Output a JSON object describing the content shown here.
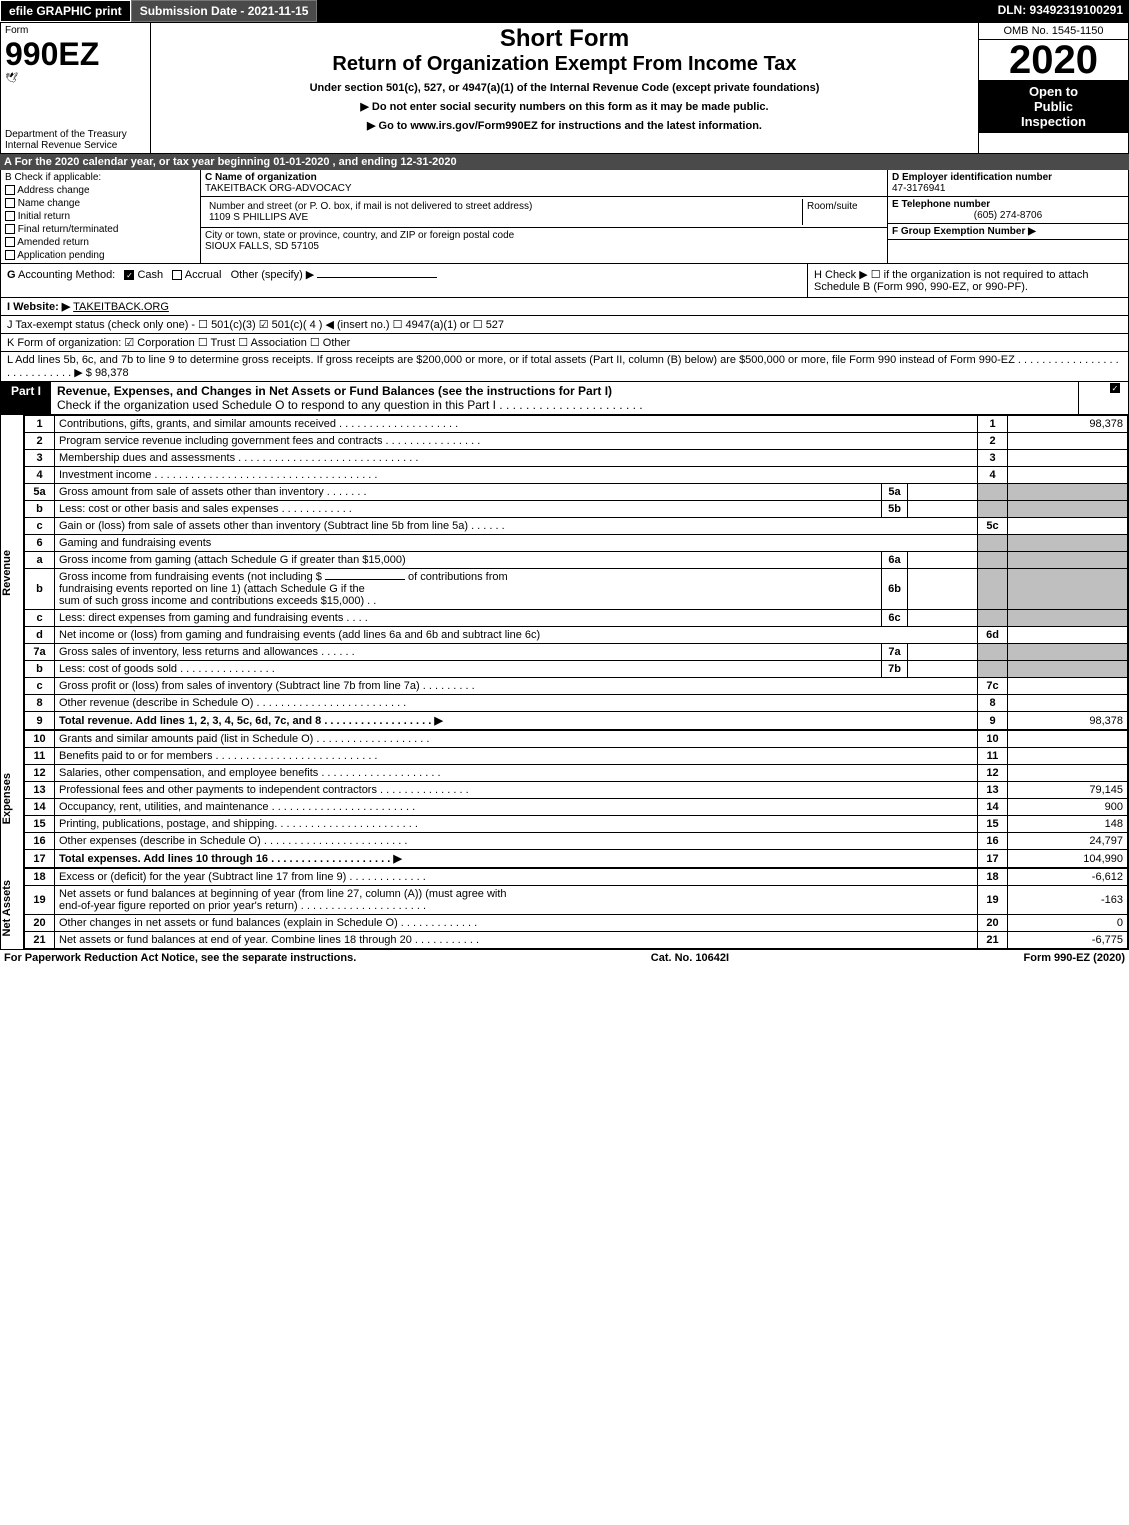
{
  "colors": {
    "black": "#000000",
    "white": "#ffffff",
    "darkgrey": "#4a4a4a",
    "lightgrey": "#bfbfbf"
  },
  "font": {
    "family": "Arial",
    "size_base": 11
  },
  "topbar": {
    "efile": "efile GRAPHIC print",
    "submission": "Submission Date - 2021-11-15",
    "dln": "DLN: 93492319100291"
  },
  "header": {
    "form_word": "Form",
    "form_no": "990EZ",
    "bug": "🕊",
    "dept": "Department of the Treasury",
    "irs": "Internal Revenue Service",
    "title1": "Short Form",
    "title2": "Return of Organization Exempt From Income Tax",
    "sub1": "Under section 501(c), 527, or 4947(a)(1) of the Internal Revenue Code (except private foundations)",
    "sub2": "▶ Do not enter social security numbers on this form as it may be made public.",
    "sub3": "▶ Go to www.irs.gov/Form990EZ for instructions and the latest information.",
    "sub3_link": "www.irs.gov/Form990EZ",
    "omb": "OMB No. 1545-1150",
    "year": "2020",
    "open": "Open to\nPublic\nInspection"
  },
  "line_a": "A For the 2020 calendar year, or tax year beginning 01-01-2020 , and ending 12-31-2020",
  "col_b": {
    "header": "B Check if applicable:",
    "opts": [
      "Address change",
      "Name change",
      "Initial return",
      "Final return/terminated",
      "Amended return",
      "Application pending"
    ]
  },
  "col_c": {
    "name_hdr": "C Name of organization",
    "name_val": "TAKEITBACK ORG-ADVOCACY",
    "addr_hdr": "Number and street (or P. O. box, if mail is not delivered to street address)",
    "addr_val": "1109 S PHILLIPS AVE",
    "room_hdr": "Room/suite",
    "room_val": "",
    "city_hdr": "City or town, state or province, country, and ZIP or foreign postal code",
    "city_val": "SIOUX FALLS, SD  57105"
  },
  "col_d": {
    "ein_hdr": "D Employer identification number",
    "ein_val": "47-3176941",
    "tel_hdr": "E Telephone number",
    "tel_val": "(605) 274-8706",
    "grp_hdr": "F Group Exemption Number ▶",
    "grp_val": ""
  },
  "line_g": "G Accounting Method:    ☑ Cash   ☐ Accrual   Other (specify) ▶",
  "line_h": "H  Check ▶  ☐  if the organization is not required to attach Schedule B (Form 990, 990-EZ, or 990-PF).",
  "line_i_label": "I Website: ▶",
  "line_i_val": "TAKEITBACK.ORG",
  "line_j": "J Tax-exempt status (check only one) -  ☐ 501(c)(3)  ☑ 501(c)( 4 ) ◀ (insert no.)  ☐ 4947(a)(1) or  ☐ 527",
  "line_k": "K Form of organization:   ☑ Corporation   ☐ Trust   ☐ Association   ☐ Other",
  "line_l_text": "L Add lines 5b, 6c, and 7b to line 9 to determine gross receipts. If gross receipts are $200,000 or more, or if total assets (Part II, column (B) below) are $500,000 or more, file Form 990 instead of Form 990-EZ .  .  .  .  .  .  .  .  .  .  .  .  .  .  .  .  .  .  .  .  .  .  .  .  .  .  .  .  ▶ $",
  "line_l_val": "98,378",
  "part1": {
    "tag": "Part I",
    "title": "Revenue, Expenses, and Changes in Net Assets or Fund Balances (see the instructions for Part I)",
    "subtitle": "Check if the organization used Schedule O to respond to any question in this Part I .  .  .  .  .  .  .  .  .  .  .  .  .  .  .  .  .  .  .  .  .  ."
  },
  "sections": {
    "revenue": "Revenue",
    "expenses": "Expenses",
    "netassets": "Net Assets"
  },
  "rows": [
    {
      "n": "1",
      "d": "Contributions, gifts, grants, and similar amounts received .  .  .  .  .  .  .  .  .  .  .  .  .  .  .  .  .  .  .  .",
      "r": "1",
      "a": "98,378"
    },
    {
      "n": "2",
      "d": "Program service revenue including government fees and contracts .  .  .  .  .  .  .  .  .  .  .  .  .  .  .  .",
      "r": "2",
      "a": ""
    },
    {
      "n": "3",
      "d": "Membership dues and assessments .  .  .  .  .  .  .  .  .  .  .  .  .  .  .  .  .  .  .  .  .  .  .  .  .  .  .  .  .  .",
      "r": "3",
      "a": ""
    },
    {
      "n": "4",
      "d": "Investment income .  .  .  .  .  .  .  .  .  .  .  .  .  .  .  .  .  .  .  .  .  .  .  .  .  .  .  .  .  .  .  .  .  .  .  .  .",
      "r": "4",
      "a": ""
    }
  ],
  "row5a": {
    "n": "5a",
    "d": "Gross amount from sale of assets other than inventory .  .  .  .  .  .  .",
    "sn": "5a",
    "sv": ""
  },
  "row5b": {
    "n": "b",
    "d": "Less: cost or other basis and sales expenses .  .  .  .  .  .  .  .  .  .  .  .",
    "sn": "5b",
    "sv": ""
  },
  "row5c": {
    "n": "c",
    "d": "Gain or (loss) from sale of assets other than inventory (Subtract line 5b from line 5a) .  .  .  .  .  .",
    "r": "5c",
    "a": ""
  },
  "row6": {
    "n": "6",
    "d": "Gaming and fundraising events"
  },
  "row6a": {
    "n": "a",
    "d": "Gross income from gaming (attach Schedule G if greater than $15,000)",
    "sn": "6a",
    "sv": ""
  },
  "row6b": {
    "n": "b",
    "d1": "Gross income from fundraising events (not including $",
    "d2": "of contributions from",
    "d3": "fundraising events reported on line 1) (attach Schedule G if the",
    "d4": "sum of such gross income and contributions exceeds $15,000)   .  .",
    "sn": "6b",
    "sv": ""
  },
  "row6c": {
    "n": "c",
    "d": "Less: direct expenses from gaming and fundraising events   .  .  .  .",
    "sn": "6c",
    "sv": ""
  },
  "row6d": {
    "n": "d",
    "d": "Net income or (loss) from gaming and fundraising events (add lines 6a and 6b and subtract line 6c)",
    "r": "6d",
    "a": ""
  },
  "row7a": {
    "n": "7a",
    "d": "Gross sales of inventory, less returns and allowances .  .  .  .  .  .",
    "sn": "7a",
    "sv": ""
  },
  "row7b": {
    "n": "b",
    "d": "Less: cost of goods sold      .  .  .  .  .  .  .  .  .  .  .  .  .  .  .  .",
    "sn": "7b",
    "sv": ""
  },
  "row7c": {
    "n": "c",
    "d": "Gross profit or (loss) from sales of inventory (Subtract line 7b from line 7a) .  .  .  .  .  .  .  .  .",
    "r": "7c",
    "a": ""
  },
  "row8": {
    "n": "8",
    "d": "Other revenue (describe in Schedule O) .  .  .  .  .  .  .  .  .  .  .  .  .  .  .  .  .  .  .  .  .  .  .  .  .",
    "r": "8",
    "a": ""
  },
  "row9": {
    "n": "9",
    "d": "Total revenue. Add lines 1, 2, 3, 4, 5c, 6d, 7c, and 8  .  .  .  .  .  .  .  .  .  .  .  .  .  .  .  .  .  .  ▶",
    "r": "9",
    "a": "98,378",
    "bold": true
  },
  "exp": [
    {
      "n": "10",
      "d": "Grants and similar amounts paid (list in Schedule O) .  .  .  .  .  .  .  .  .  .  .  .  .  .  .  .  .  .  .",
      "r": "10",
      "a": ""
    },
    {
      "n": "11",
      "d": "Benefits paid to or for members    .  .  .  .  .  .  .  .  .  .  .  .  .  .  .  .  .  .  .  .  .  .  .  .  .  .  .",
      "r": "11",
      "a": ""
    },
    {
      "n": "12",
      "d": "Salaries, other compensation, and employee benefits .  .  .  .  .  .  .  .  .  .  .  .  .  .  .  .  .  .  .  .",
      "r": "12",
      "a": ""
    },
    {
      "n": "13",
      "d": "Professional fees and other payments to independent contractors .  .  .  .  .  .  .  .  .  .  .  .  .  .  .",
      "r": "13",
      "a": "79,145"
    },
    {
      "n": "14",
      "d": "Occupancy, rent, utilities, and maintenance .  .  .  .  .  .  .  .  .  .  .  .  .  .  .  .  .  .  .  .  .  .  .  .",
      "r": "14",
      "a": "900"
    },
    {
      "n": "15",
      "d": "Printing, publications, postage, and shipping.  .  .  .  .  .  .  .  .  .  .  .  .  .  .  .  .  .  .  .  .  .  .  .",
      "r": "15",
      "a": "148"
    },
    {
      "n": "16",
      "d": "Other expenses (describe in Schedule O)   .  .  .  .  .  .  .  .  .  .  .  .  .  .  .  .  .  .  .  .  .  .  .  .",
      "r": "16",
      "a": "24,797"
    },
    {
      "n": "17",
      "d": "Total expenses. Add lines 10 through 16    .  .  .  .  .  .  .  .  .  .  .  .  .  .  .  .  .  .  .  .  ▶",
      "r": "17",
      "a": "104,990",
      "bold": true
    }
  ],
  "net": [
    {
      "n": "18",
      "d": "Excess or (deficit) for the year (Subtract line 17 from line 9)       .  .  .  .  .  .  .  .  .  .  .  .  .",
      "r": "18",
      "a": "-6,612"
    },
    {
      "n": "19",
      "d": "Net assets or fund balances at beginning of year (from line 27, column (A)) (must agree with",
      "d2": "end-of-year figure reported on prior year's return) .  .  .  .  .  .  .  .  .  .  .  .  .  .  .  .  .  .  .  .  .",
      "r": "19",
      "a": "-163"
    },
    {
      "n": "20",
      "d": "Other changes in net assets or fund balances (explain in Schedule O) .  .  .  .  .  .  .  .  .  .  .  .  .",
      "r": "20",
      "a": "0"
    },
    {
      "n": "21",
      "d": "Net assets or fund balances at end of year. Combine lines 18 through 20 .  .  .  .  .  .  .  .  .  .  .",
      "r": "21",
      "a": "-6,775"
    }
  ],
  "footer": {
    "left": "For Paperwork Reduction Act Notice, see the separate instructions.",
    "center": "Cat. No. 10642I",
    "right": "Form 990-EZ (2020)"
  }
}
